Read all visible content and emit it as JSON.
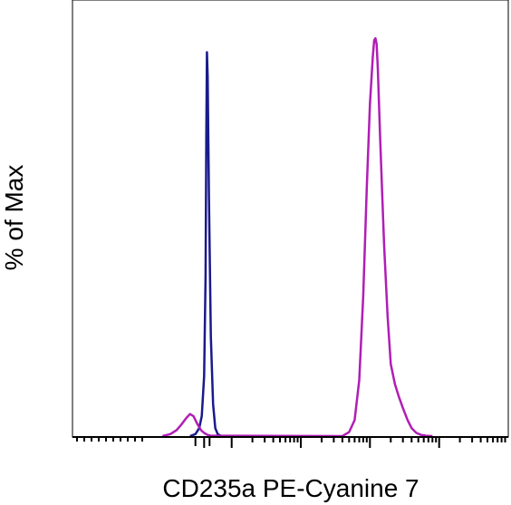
{
  "chart_data": {
    "type": "line",
    "xlabel": "CD235a PE-Cyanine 7",
    "ylabel": "% of Max",
    "xscale": "log",
    "xlim": [
      0.5,
      1000000
    ],
    "ylim": [
      0,
      100
    ],
    "grid": false,
    "legend": "none",
    "series": [
      {
        "color": "#1a1a8c",
        "x": [
          25,
          30,
          34,
          37,
          40,
          42,
          43,
          44,
          45,
          47,
          50,
          54,
          58,
          63,
          70,
          80
        ],
        "y": [
          0,
          0.5,
          2,
          5,
          15,
          40,
          75,
          96,
          90,
          60,
          25,
          8,
          2,
          0.5,
          0.1,
          0
        ]
      },
      {
        "color": "#b01eb5",
        "x": [
          10,
          13,
          16,
          19,
          22,
          25,
          28,
          32,
          36,
          40,
          45,
          50,
          4000,
          5000,
          6000,
          7000,
          8000,
          9000,
          10000,
          11000,
          11500,
          12000,
          12500,
          13000,
          14000,
          16000,
          18000,
          20000,
          23000,
          26000,
          30000,
          35000,
          40000,
          47000,
          55000,
          65000,
          80000
        ],
        "y": [
          0,
          0.5,
          1.5,
          3,
          4.5,
          5.5,
          5,
          3,
          1.5,
          0.8,
          0.3,
          0.1,
          0,
          1,
          4,
          14,
          35,
          62,
          83,
          95,
          99,
          99.5,
          98,
          92,
          75,
          48,
          30,
          18,
          13,
          10,
          7,
          4,
          2,
          0.8,
          0.3,
          0.1,
          0
        ]
      }
    ]
  }
}
